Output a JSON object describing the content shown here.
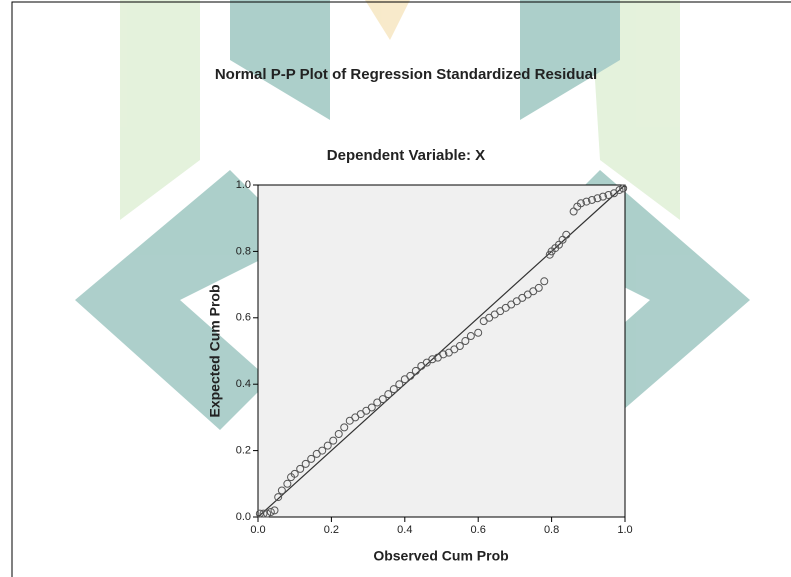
{
  "chart_data": {
    "type": "scatter",
    "title": "Normal P-P Plot of Regression Standardized Residual",
    "subtitle": "Dependent Variable: X",
    "x_label": "Observed Cum Prob",
    "y_label": "Expected Cum Prob",
    "xlim": [
      0,
      1
    ],
    "ylim": [
      0,
      1
    ],
    "xticks": [
      {
        "value": 0,
        "label": "0.0"
      },
      0.2,
      0.4,
      0.6,
      0.8,
      {
        "value": 1,
        "label": "1.0"
      }
    ],
    "yticks": [
      {
        "value": 0,
        "label": "0.0"
      },
      0.2,
      0.4,
      0.6,
      0.8,
      {
        "value": 1,
        "label": "1.0"
      }
    ],
    "reference_line": true,
    "color": "#555555",
    "x": [
      0.005,
      0.015,
      0.025,
      0.035,
      0.045,
      0.055,
      0.065,
      0.08,
      0.09,
      0.1,
      0.115,
      0.13,
      0.145,
      0.16,
      0.175,
      0.19,
      0.205,
      0.22,
      0.235,
      0.25,
      0.265,
      0.28,
      0.295,
      0.31,
      0.325,
      0.34,
      0.355,
      0.37,
      0.385,
      0.4,
      0.415,
      0.43,
      0.445,
      0.46,
      0.475,
      0.49,
      0.505,
      0.52,
      0.535,
      0.55,
      0.565,
      0.58,
      0.6,
      0.615,
      0.63,
      0.645,
      0.66,
      0.675,
      0.69,
      0.705,
      0.72,
      0.735,
      0.75,
      0.765,
      0.78,
      0.795,
      0.8,
      0.81,
      0.82,
      0.83,
      0.84,
      0.86,
      0.87,
      0.88,
      0.895,
      0.91,
      0.925,
      0.94,
      0.955,
      0.97,
      0.985,
      0.995
    ],
    "values": [
      0.01,
      0.01,
      0.01,
      0.015,
      0.02,
      0.06,
      0.08,
      0.1,
      0.12,
      0.13,
      0.145,
      0.16,
      0.175,
      0.19,
      0.2,
      0.215,
      0.23,
      0.25,
      0.27,
      0.29,
      0.3,
      0.31,
      0.32,
      0.33,
      0.345,
      0.355,
      0.37,
      0.385,
      0.4,
      0.415,
      0.425,
      0.44,
      0.455,
      0.465,
      0.475,
      0.48,
      0.49,
      0.495,
      0.505,
      0.515,
      0.53,
      0.545,
      0.555,
      0.59,
      0.6,
      0.61,
      0.62,
      0.63,
      0.64,
      0.65,
      0.66,
      0.67,
      0.68,
      0.69,
      0.71,
      0.79,
      0.8,
      0.81,
      0.82,
      0.835,
      0.85,
      0.92,
      0.935,
      0.945,
      0.95,
      0.955,
      0.96,
      0.965,
      0.97,
      0.975,
      0.985,
      0.99
    ]
  }
}
